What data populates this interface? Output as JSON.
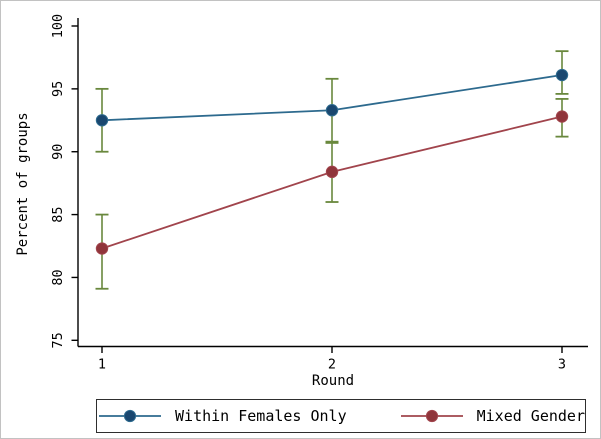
{
  "figure": {
    "background": "#ffffff",
    "border_color": "#c2c2c2"
  },
  "chart_data": {
    "type": "line",
    "title": "",
    "xlabel": "Round",
    "ylabel": "Percent of groups",
    "x": [
      1,
      2,
      3
    ],
    "xticks": [
      "1",
      "2",
      "3"
    ],
    "ylim": [
      75,
      100
    ],
    "yticks": [
      "75",
      "80",
      "85",
      "90",
      "95",
      "100"
    ],
    "grid": "off",
    "legend_position": "bottom",
    "error_bar_color": "#69883d",
    "axis_color": "#000000",
    "series": [
      {
        "name": "Within Females Only",
        "values": [
          92.5,
          93.3,
          96.1
        ],
        "ci_low": [
          90.0,
          90.7,
          94.6
        ],
        "ci_high": [
          95.0,
          95.8,
          98.0
        ],
        "line_color": "#2d6a8e",
        "marker_color": "#1a476f"
      },
      {
        "name": "Mixed Gender",
        "values": [
          82.3,
          88.4,
          92.8
        ],
        "ci_low": [
          79.1,
          86.0,
          91.2
        ],
        "ci_high": [
          85.0,
          90.8,
          94.2
        ],
        "line_color": "#a1444c",
        "marker_color": "#90353b"
      }
    ]
  }
}
